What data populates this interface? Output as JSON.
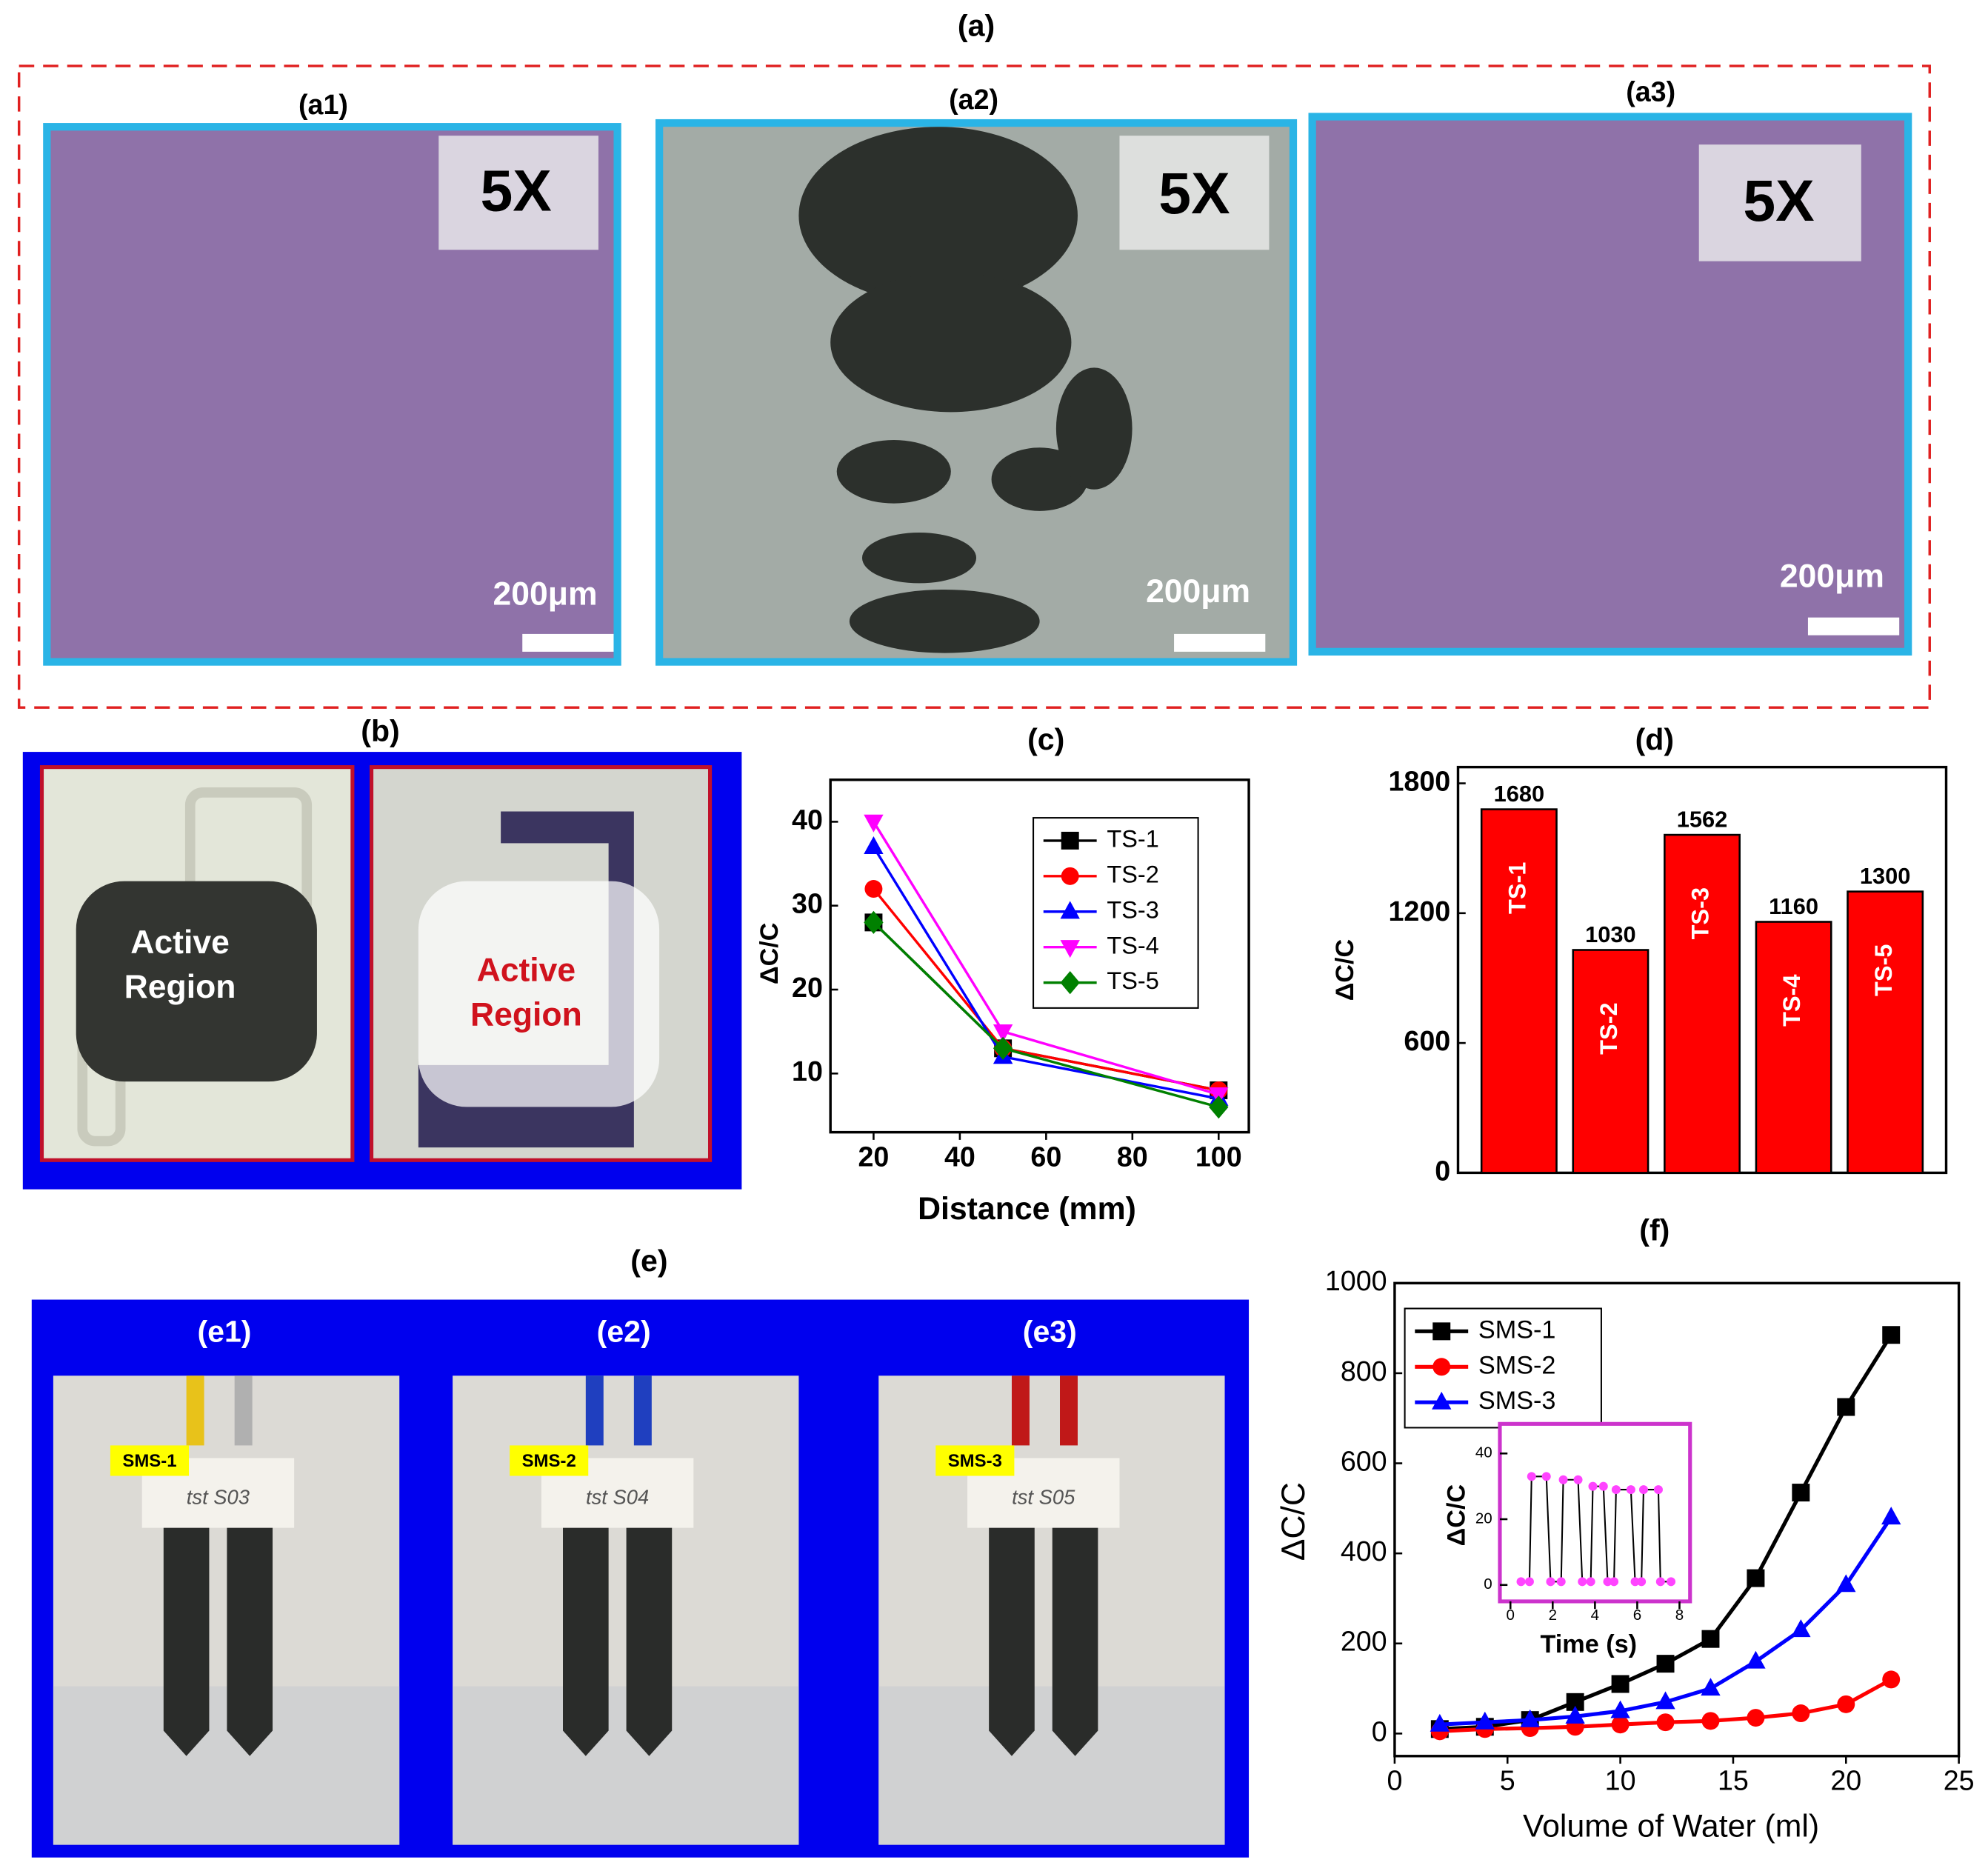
{
  "figure": {
    "a": "(a)",
    "a1": "(a1)",
    "a2": "(a2)",
    "a3": "(a3)",
    "magnification": [
      "5X",
      "5X",
      "5X"
    ],
    "scale_bar": [
      "200μm",
      "200μm",
      "200μm"
    ],
    "b": "(b)",
    "active_region": [
      [
        "Active",
        "Region"
      ],
      [
        "Active",
        "Region"
      ]
    ],
    "e": "(e)",
    "e_panels": [
      "(e1)",
      "(e2)",
      "(e3)"
    ],
    "sensor_tags": [
      "SMS-1",
      "SMS-2",
      "SMS-3"
    ],
    "handwriting": [
      "tst S03",
      "tst S04",
      "tst S05"
    ]
  },
  "chart_data": [
    {
      "type": "line",
      "title": "(c)",
      "x_label": "Distance (mm)",
      "y_label": "ΔC/C",
      "x": [
        20,
        50,
        100
      ],
      "xlim": [
        10,
        107
      ],
      "ylim": [
        3,
        45
      ],
      "xticks": [
        20,
        40,
        60,
        80,
        100
      ],
      "yticks": [
        10,
        20,
        30,
        40
      ],
      "legend": "upper right",
      "series": [
        {
          "name": "TS-1",
          "color": "#000000",
          "marker": "square",
          "values": [
            28,
            13,
            8
          ]
        },
        {
          "name": "TS-2",
          "color": "#ff0000",
          "marker": "circle",
          "values": [
            32,
            13,
            8
          ]
        },
        {
          "name": "TS-3",
          "color": "#0000ff",
          "marker": "triangle-up",
          "values": [
            37,
            12,
            7
          ]
        },
        {
          "name": "TS-4",
          "color": "#ff00ff",
          "marker": "triangle-down",
          "values": [
            40,
            15,
            7.5
          ]
        },
        {
          "name": "TS-5",
          "color": "#008000",
          "marker": "diamond",
          "values": [
            28,
            13,
            6
          ]
        }
      ]
    },
    {
      "type": "bar",
      "title": "(d)",
      "y_label": "ΔC/C",
      "categories": [
        "TS-1",
        "TS-2",
        "TS-3",
        "TS-4",
        "TS-5"
      ],
      "values": [
        1680,
        1030,
        1562,
        1160,
        1300
      ],
      "color": "#ff0000",
      "ylim": [
        0,
        1875
      ],
      "yticks": [
        0,
        600,
        1200,
        1800
      ]
    },
    {
      "type": "line",
      "title": "(f)",
      "x_label": "Volume of Water (ml)",
      "y_label": "ΔC/C",
      "x": [
        2,
        4,
        6,
        8,
        10,
        12,
        14,
        16,
        18,
        20,
        22
      ],
      "xlim": [
        0,
        25
      ],
      "ylim": [
        -50,
        1000
      ],
      "xticks": [
        0,
        5,
        10,
        15,
        20,
        25
      ],
      "yticks": [
        0,
        200,
        400,
        600,
        800,
        1000
      ],
      "legend": "upper left",
      "series": [
        {
          "name": "SMS-1",
          "color": "#000000",
          "marker": "square",
          "values": [
            10,
            15,
            30,
            70,
            110,
            155,
            210,
            345,
            535,
            725,
            885
          ]
        },
        {
          "name": "SMS-2",
          "color": "#ff0000",
          "marker": "circle",
          "values": [
            5,
            10,
            12,
            15,
            20,
            25,
            28,
            35,
            45,
            65,
            120
          ]
        },
        {
          "name": "SMS-3",
          "color": "#0000ff",
          "marker": "triangle-up",
          "values": [
            20,
            25,
            30,
            38,
            50,
            70,
            100,
            160,
            230,
            330,
            480
          ]
        }
      ]
    },
    {
      "type": "line",
      "x_label": "Time (s)",
      "y_label": "ΔC/C",
      "x": [
        0.5,
        0.9,
        1.0,
        1.7,
        1.9,
        2.4,
        2.5,
        3.2,
        3.4,
        3.8,
        3.9,
        4.4,
        4.6,
        4.9,
        5.0,
        5.7,
        5.9,
        6.2,
        6.3,
        7.0,
        7.1,
        7.6
      ],
      "xlim": [
        -0.5,
        8.5
      ],
      "ylim": [
        -5,
        49
      ],
      "xticks": [
        0,
        2,
        4,
        6,
        8
      ],
      "yticks": [
        0,
        20,
        40
      ],
      "frame_color": "#cc33cc",
      "series": [
        {
          "color": "#000000",
          "marker": "circle",
          "marker_color": "#ff44ff",
          "values": [
            1,
            1,
            33,
            33,
            1,
            1,
            32,
            32,
            1,
            1,
            30,
            30,
            1,
            1,
            29,
            29,
            1,
            1,
            29,
            29,
            1,
            1
          ]
        }
      ]
    }
  ]
}
